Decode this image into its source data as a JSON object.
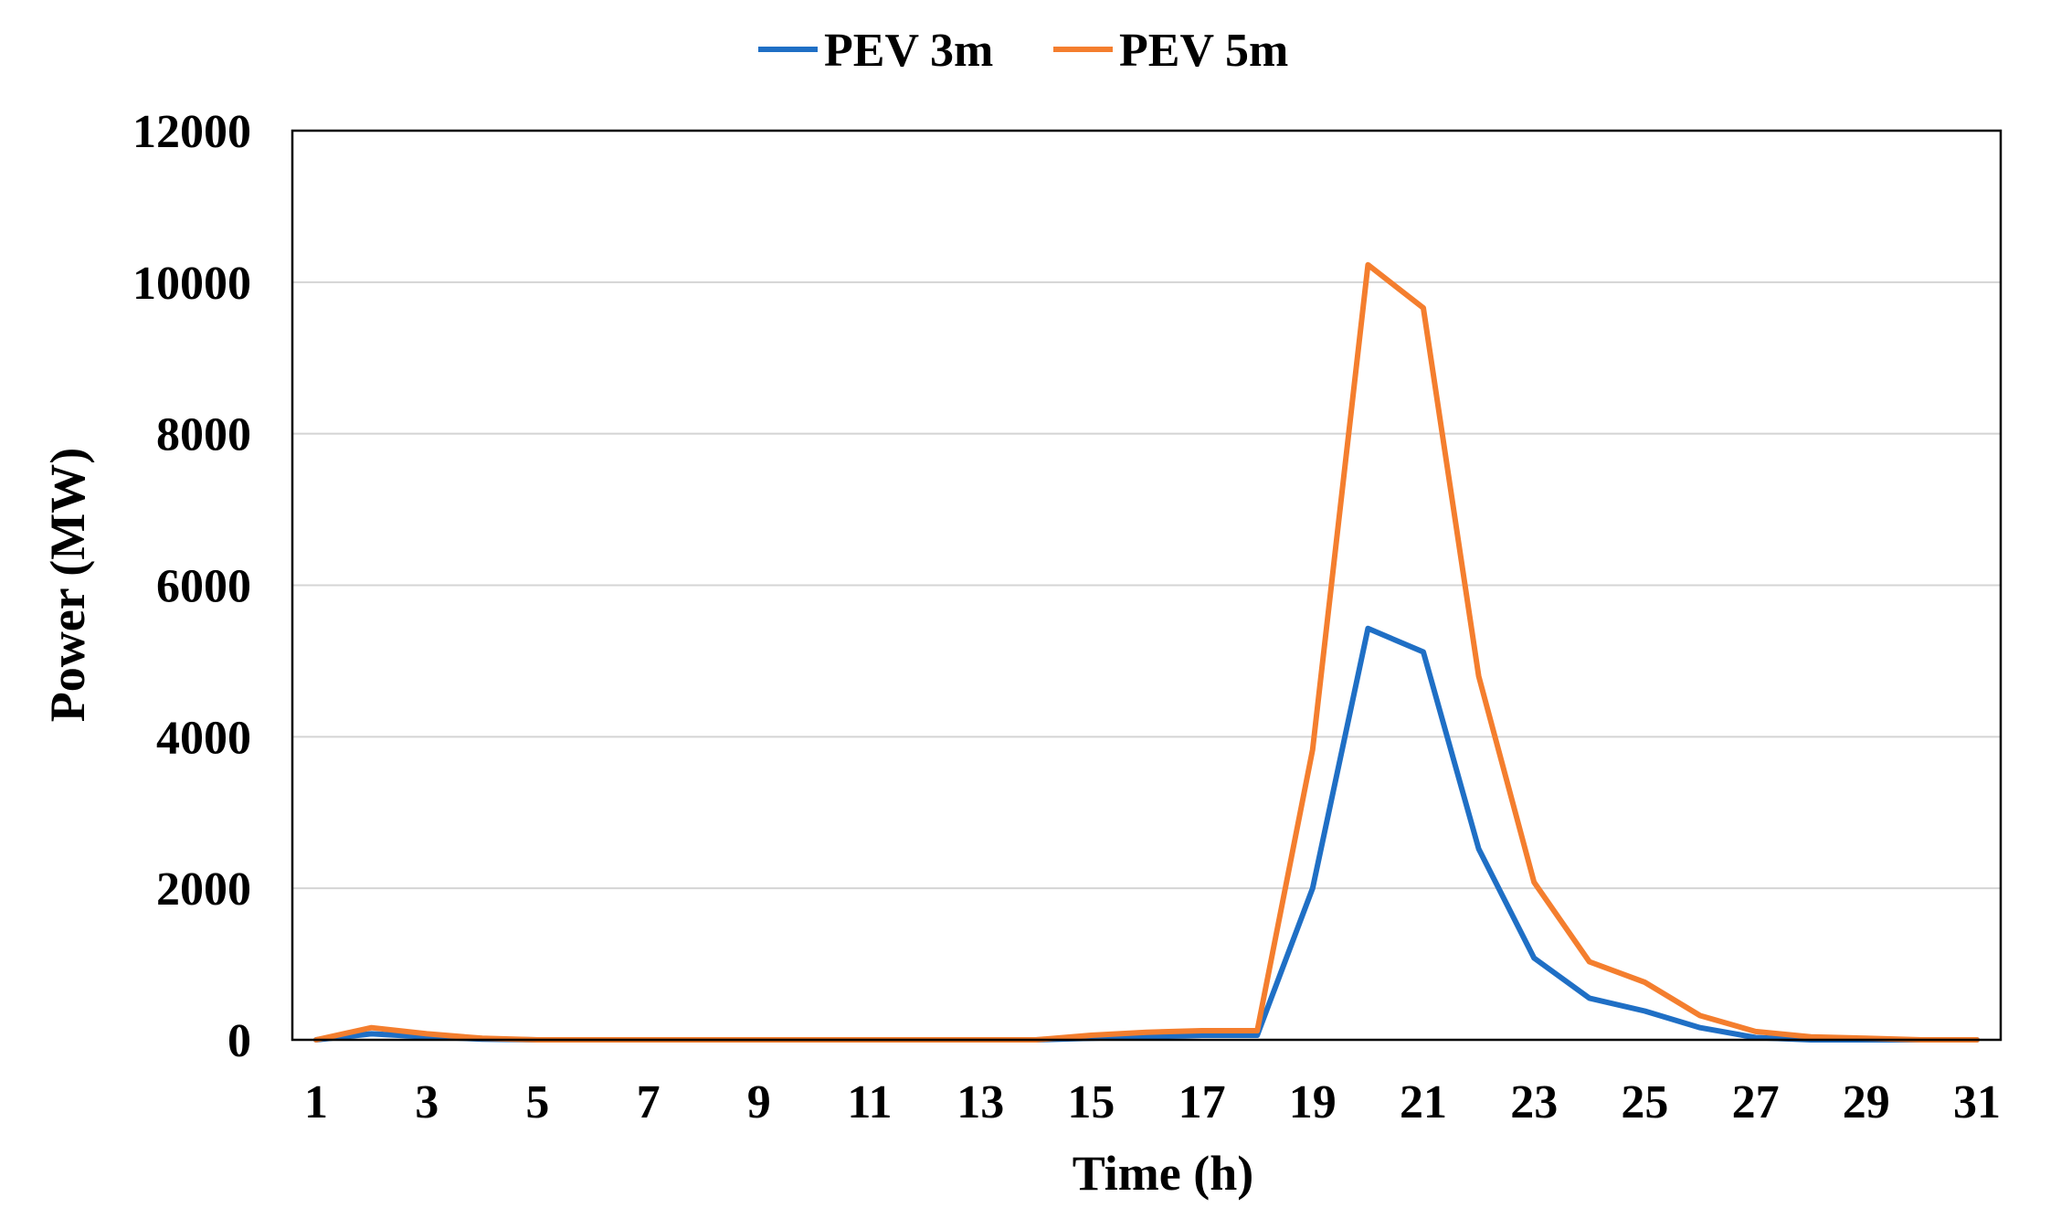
{
  "chart_data": {
    "type": "line",
    "title": "",
    "xlabel": "Time (h)",
    "ylabel": "Power (MW)",
    "x": [
      1,
      2,
      3,
      4,
      5,
      6,
      7,
      8,
      9,
      10,
      11,
      12,
      13,
      14,
      15,
      16,
      17,
      18,
      19,
      20,
      21,
      22,
      23,
      24,
      25,
      26,
      27,
      28,
      29,
      30,
      31
    ],
    "xticks": [
      "1",
      "3",
      "5",
      "7",
      "9",
      "11",
      "13",
      "15",
      "17",
      "19",
      "21",
      "23",
      "25",
      "27",
      "29",
      "31"
    ],
    "yticks": [
      "0",
      "2000",
      "4000",
      "6000",
      "8000",
      "10000",
      "12000"
    ],
    "ylim": [
      0,
      12000
    ],
    "xlim": [
      1,
      31
    ],
    "grid": "horizontal",
    "legend_position": "top-center",
    "series": [
      {
        "name": "PEV 3m",
        "color": "#1F6FC5",
        "values": [
          0,
          80,
          40,
          10,
          0,
          0,
          0,
          0,
          0,
          0,
          0,
          0,
          0,
          0,
          20,
          40,
          60,
          60,
          2000,
          5430,
          5120,
          2520,
          1080,
          550,
          380,
          160,
          30,
          0,
          0,
          0,
          0
        ]
      },
      {
        "name": "PEV 5m",
        "color": "#F47E2E",
        "values": [
          0,
          160,
          80,
          20,
          0,
          0,
          0,
          0,
          0,
          0,
          0,
          0,
          0,
          0,
          60,
          100,
          120,
          120,
          3830,
          10230,
          9660,
          4800,
          2080,
          1030,
          760,
          320,
          110,
          40,
          20,
          0,
          0
        ]
      }
    ]
  }
}
